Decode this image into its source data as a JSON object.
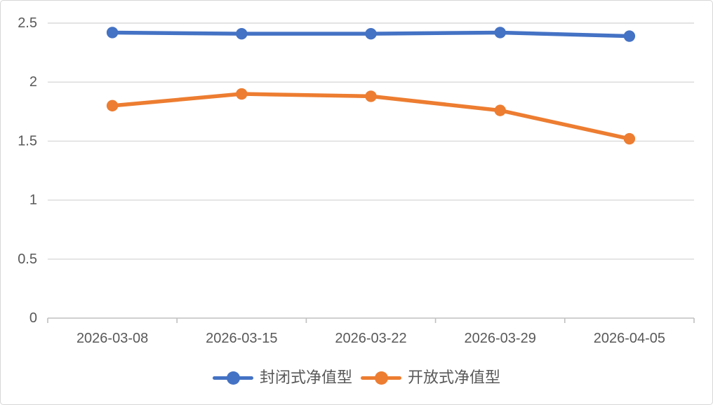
{
  "chart_data": {
    "type": "line",
    "title": "",
    "xlabel": "",
    "ylabel": "",
    "x_categories": [
      "2026-03-08",
      "2026-03-15",
      "2026-03-22",
      "2026-03-29",
      "2026-04-05"
    ],
    "series": [
      {
        "name": "封闭式净值型",
        "color": "#4472C4",
        "values": [
          2.42,
          2.41,
          2.41,
          2.42,
          2.39
        ]
      },
      {
        "name": "开放式净值型",
        "color": "#ED7D31",
        "values": [
          1.8,
          1.9,
          1.88,
          1.76,
          1.52
        ]
      }
    ],
    "ylim": [
      0,
      2.5
    ],
    "y_ticks": [
      {
        "value": 0,
        "label": "0"
      },
      {
        "value": 0.5,
        "label": "0.5"
      },
      {
        "value": 1,
        "label": "1"
      },
      {
        "value": 1.5,
        "label": "1.5"
      },
      {
        "value": 2,
        "label": "2"
      },
      {
        "value": 2.5,
        "label": "2.5"
      }
    ],
    "grid": true,
    "legend_position": "bottom"
  },
  "colors": {
    "grid": "#DADADA",
    "axis": "#C0C0C0",
    "tick_text": "#595959",
    "border": "#D6D6D6",
    "background": "#FFFFFF"
  }
}
